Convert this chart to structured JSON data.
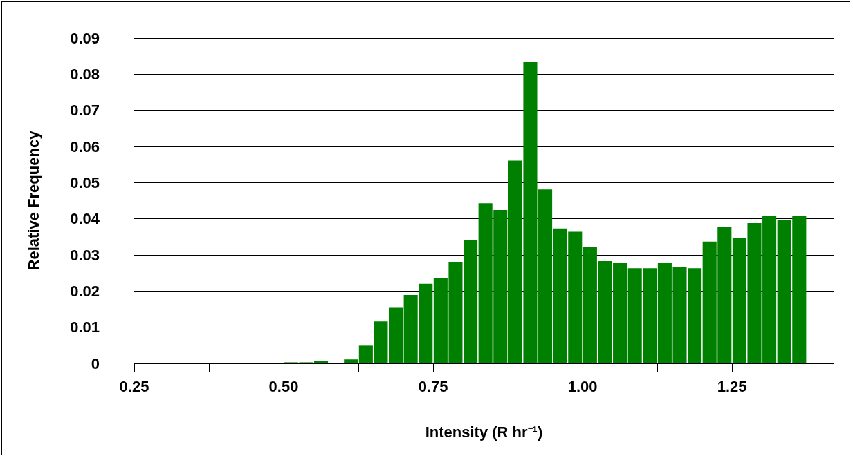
{
  "chart_data": {
    "type": "histogram",
    "xlabel": "Intensity (R hr⁻¹)",
    "ylabel": "Relative Frequency",
    "color": "#008000",
    "bins": [
      0.25,
      0.275,
      0.3,
      0.325,
      0.35,
      0.375,
      0.4,
      0.425,
      0.45,
      0.475,
      0.5,
      0.525,
      0.55,
      0.575,
      0.6,
      0.625,
      0.65,
      0.675,
      0.7,
      0.725,
      0.75,
      0.775,
      0.8,
      0.825,
      0.85,
      0.875,
      0.9,
      0.925,
      0.95,
      0.975,
      1.0,
      1.025,
      1.05,
      1.075,
      1.1,
      1.125,
      1.15,
      1.175,
      1.2,
      1.225,
      1.25,
      1.275,
      1.3,
      1.325,
      1.35,
      1.375
    ],
    "values": [
      0,
      0,
      0,
      0,
      0,
      0,
      0,
      0,
      0,
      0,
      0.0003,
      0.0003,
      0.0007,
      0,
      0.0011,
      0.0049,
      0.0116,
      0.0154,
      0.0189,
      0.022,
      0.0236,
      0.0281,
      0.0341,
      0.0443,
      0.0424,
      0.0561,
      0.0833,
      0.0481,
      0.0373,
      0.0364,
      0.0322,
      0.0283,
      0.0279,
      0.0263,
      0.0263,
      0.0279,
      0.0267,
      0.0263,
      0.0337,
      0.0378,
      0.0347,
      0.0388,
      0.0407,
      0.0397,
      0.0407
    ],
    "xlim": [
      0.25,
      1.42
    ],
    "xticks": [
      {
        "value": 0.25,
        "label": "0.25"
      },
      {
        "value": 0.375,
        "label": null
      },
      {
        "value": 0.5,
        "label": "0.50"
      },
      {
        "value": 0.625,
        "label": null
      },
      {
        "value": 0.75,
        "label": "0.75"
      },
      {
        "value": 0.875,
        "label": null
      },
      {
        "value": 1.0,
        "label": "1.00"
      },
      {
        "value": 1.125,
        "label": null
      },
      {
        "value": 1.25,
        "label": "1.25"
      },
      {
        "value": 1.375,
        "label": null
      }
    ],
    "ylim": [
      0,
      0.09
    ],
    "yticks": [
      0,
      0.01,
      0.02,
      0.03,
      0.04,
      0.05,
      0.06,
      0.07,
      0.08,
      0.09
    ],
    "grid": "y"
  }
}
